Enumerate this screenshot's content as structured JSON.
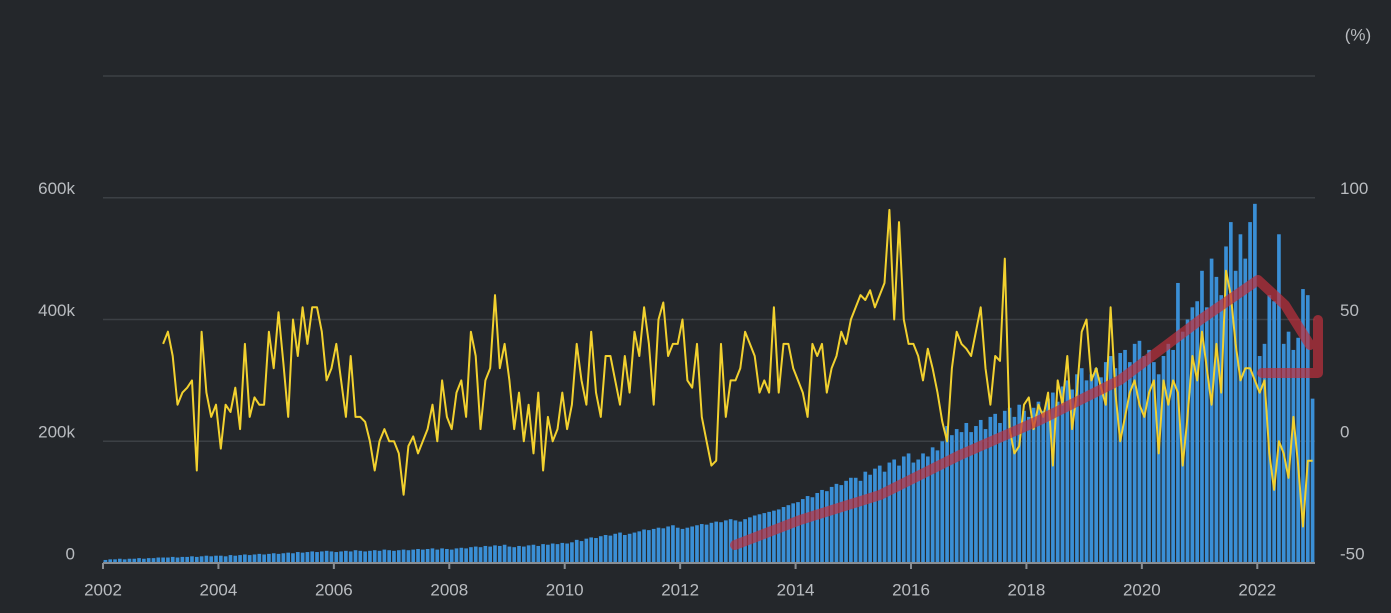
{
  "chart_data": {
    "type": "bar",
    "y2label": "(%)",
    "xlim": [
      2002,
      2023
    ],
    "xticks": [
      2002,
      2004,
      2006,
      2008,
      2010,
      2012,
      2014,
      2016,
      2018,
      2020,
      2022
    ],
    "ylim": [
      0,
      800000
    ],
    "yticks": [
      0,
      {
        "value": 200000,
        "label": "200k"
      },
      {
        "value": 400000,
        "label": "400k"
      },
      {
        "value": 600000,
        "label": "600k"
      }
    ],
    "y2lim": [
      -50,
      150
    ],
    "y2ticks": [
      -50,
      0,
      50,
      100
    ],
    "grid": true,
    "series": [
      {
        "type": "bar",
        "color": "#3a8fd6",
        "values": [
          5000,
          6000,
          6000,
          7000,
          6000,
          7000,
          7000,
          8000,
          7000,
          8000,
          8000,
          9000,
          9000,
          9000,
          10000,
          9000,
          10000,
          10000,
          11000,
          10000,
          11000,
          12000,
          11000,
          12000,
          12000,
          11000,
          13000,
          12000,
          13000,
          14000,
          13000,
          14000,
          15000,
          14000,
          15000,
          16000,
          15000,
          16000,
          17000,
          16000,
          18000,
          17000,
          18000,
          19000,
          18000,
          19000,
          20000,
          19000,
          18000,
          19000,
          20000,
          19000,
          21000,
          20000,
          19000,
          20000,
          21000,
          20000,
          22000,
          21000,
          20000,
          21000,
          22000,
          21000,
          22000,
          23000,
          22000,
          23000,
          24000,
          22000,
          24000,
          23000,
          22000,
          24000,
          25000,
          24000,
          26000,
          27000,
          26000,
          28000,
          27000,
          29000,
          28000,
          30000,
          27000,
          26000,
          28000,
          27000,
          29000,
          30000,
          28000,
          31000,
          30000,
          32000,
          31000,
          33000,
          32000,
          34000,
          38000,
          36000,
          40000,
          42000,
          41000,
          44000,
          46000,
          45000,
          48000,
          50000,
          46000,
          48000,
          50000,
          52000,
          55000,
          54000,
          56000,
          58000,
          57000,
          60000,
          62000,
          58000,
          56000,
          58000,
          60000,
          62000,
          64000,
          63000,
          66000,
          68000,
          67000,
          70000,
          72000,
          70000,
          68000,
          72000,
          75000,
          78000,
          80000,
          82000,
          84000,
          86000,
          88000,
          92000,
          95000,
          98000,
          100000,
          105000,
          110000,
          108000,
          115000,
          120000,
          118000,
          125000,
          130000,
          128000,
          135000,
          140000,
          140000,
          135000,
          150000,
          145000,
          155000,
          160000,
          150000,
          165000,
          170000,
          160000,
          175000,
          180000,
          165000,
          170000,
          180000,
          175000,
          190000,
          185000,
          200000,
          225000,
          210000,
          220000,
          215000,
          230000,
          215000,
          225000,
          235000,
          220000,
          240000,
          245000,
          230000,
          250000,
          255000,
          240000,
          260000,
          250000,
          240000,
          255000,
          265000,
          250000,
          270000,
          280000,
          265000,
          290000,
          300000,
          285000,
          310000,
          320000,
          300000,
          310000,
          320000,
          305000,
          330000,
          340000,
          320000,
          345000,
          350000,
          330000,
          360000,
          365000,
          340000,
          350000,
          330000,
          310000,
          340000,
          360000,
          350000,
          460000,
          380000,
          400000,
          420000,
          430000,
          480000,
          420000,
          500000,
          470000,
          440000,
          520000,
          560000,
          480000,
          540000,
          500000,
          560000,
          590000,
          340000,
          360000,
          440000,
          430000,
          540000,
          360000,
          380000,
          350000,
          370000,
          450000,
          440000,
          270000
        ]
      },
      {
        "type": "line",
        "axis": "y2",
        "color": "#f2d12f",
        "values": [
          null,
          null,
          null,
          null,
          null,
          null,
          null,
          null,
          null,
          null,
          null,
          null,
          40,
          45,
          35,
          15,
          20,
          22,
          25,
          -12,
          45,
          20,
          10,
          15,
          -3,
          15,
          12,
          22,
          5,
          40,
          10,
          18,
          15,
          15,
          45,
          30,
          53,
          32,
          10,
          50,
          35,
          55,
          40,
          55,
          55,
          45,
          25,
          30,
          40,
          25,
          10,
          35,
          10,
          10,
          8,
          0,
          -12,
          0,
          5,
          0,
          0,
          -5,
          -22,
          -2,
          2,
          -5,
          0,
          5,
          15,
          0,
          25,
          10,
          5,
          20,
          25,
          10,
          45,
          35,
          5,
          25,
          30,
          60,
          30,
          40,
          25,
          5,
          20,
          0,
          15,
          -5,
          20,
          -12,
          10,
          0,
          5,
          20,
          5,
          15,
          40,
          25,
          15,
          45,
          20,
          10,
          35,
          35,
          25,
          15,
          35,
          20,
          45,
          35,
          55,
          40,
          15,
          50,
          57,
          35,
          40,
          40,
          50,
          25,
          22,
          40,
          10,
          0,
          -10,
          -8,
          40,
          10,
          25,
          25,
          30,
          45,
          40,
          35,
          20,
          25,
          20,
          55,
          20,
          40,
          40,
          30,
          25,
          20,
          10,
          40,
          35,
          40,
          20,
          30,
          35,
          45,
          40,
          50,
          55,
          60,
          58,
          62,
          55,
          60,
          65,
          95,
          50,
          90,
          50,
          40,
          40,
          35,
          25,
          38,
          30,
          20,
          8,
          0,
          30,
          45,
          40,
          38,
          35,
          45,
          55,
          30,
          15,
          35,
          33,
          75,
          5,
          -5,
          -2,
          15,
          18,
          5,
          15,
          10,
          20,
          -10,
          25,
          15,
          35,
          5,
          20,
          45,
          50,
          25,
          30,
          22,
          15,
          55,
          20,
          0,
          10,
          20,
          25,
          15,
          10,
          20,
          25,
          -5,
          25,
          15,
          25,
          20,
          -10,
          10,
          35,
          25,
          45,
          30,
          15,
          40,
          20,
          70,
          60,
          40,
          25,
          30,
          30,
          25,
          20,
          25,
          -5,
          -20,
          0,
          -5,
          -15,
          10,
          -10,
          -35,
          -8,
          -8
        ]
      }
    ]
  }
}
